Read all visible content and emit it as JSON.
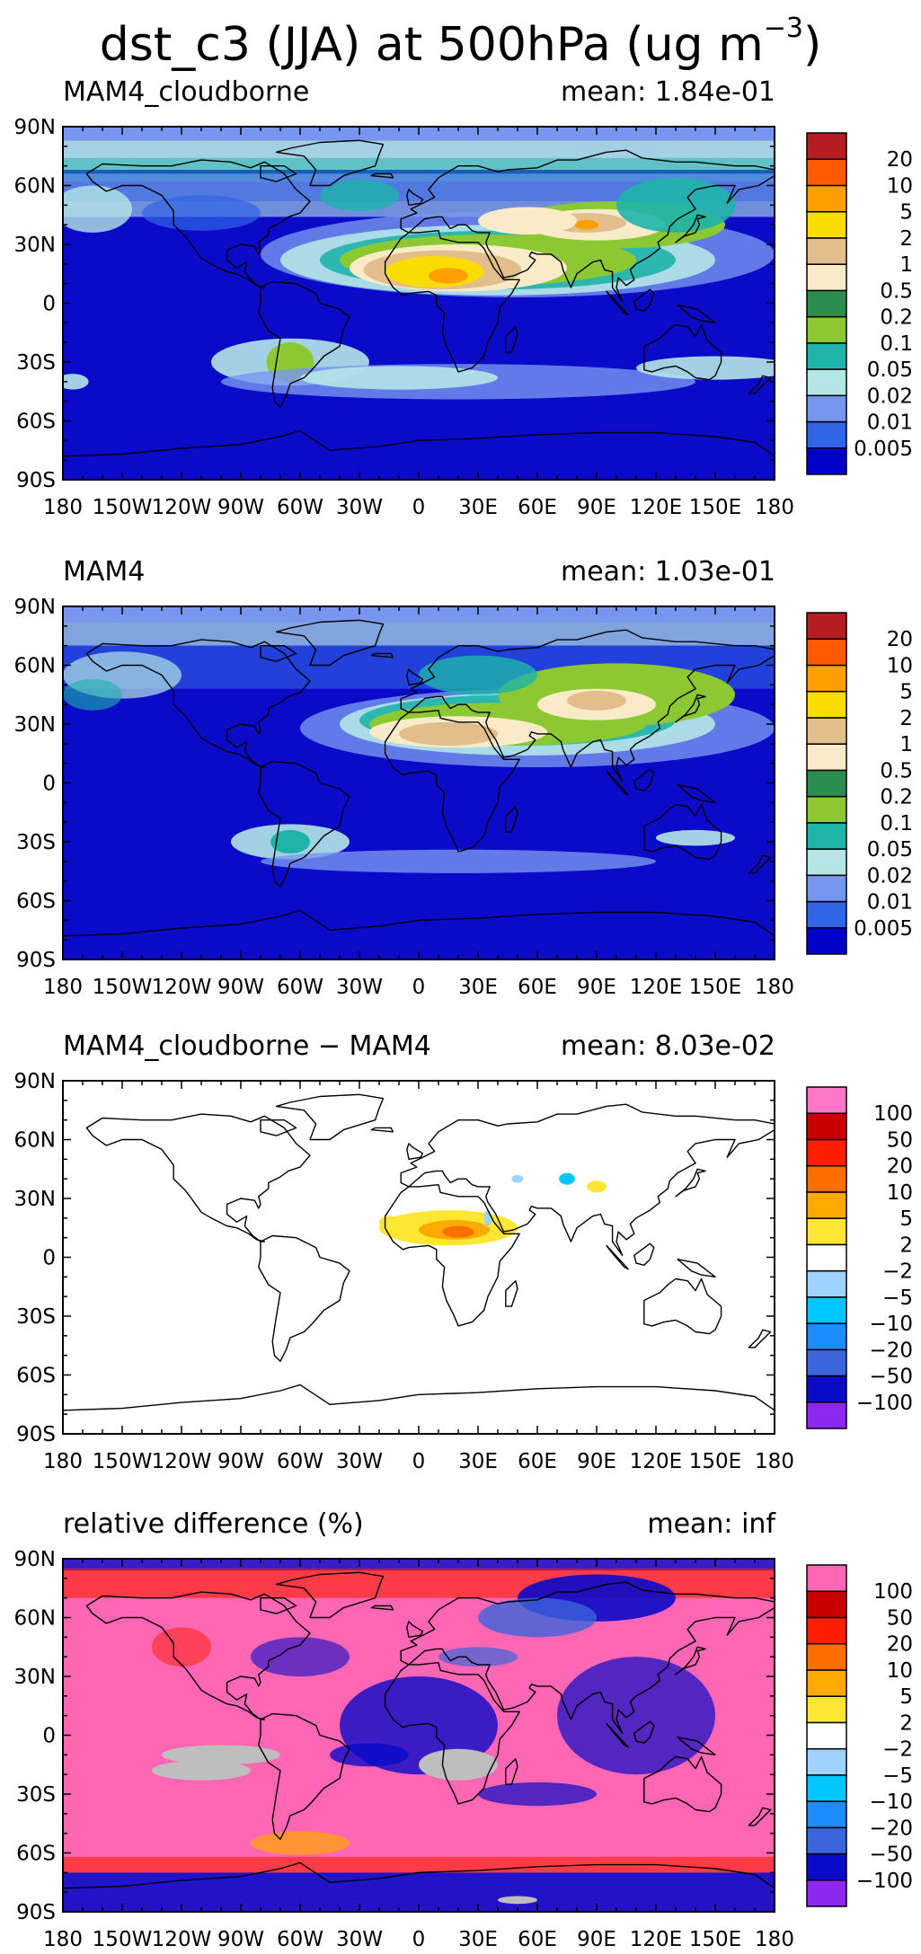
{
  "figure": {
    "title_main": "dst_c3 (JJA) at 500hPa (ug m",
    "title_sup": "−3",
    "title_close": ")"
  },
  "colors": {
    "land_outline": "#000000",
    "ocean_abs": "#0a0ac8",
    "diff_background": "#ffffff",
    "relative_background": "#ff66b3",
    "missing_gray": "#bebebe"
  },
  "chart_data": [
    {
      "type": "heatmap",
      "title": "MAM4_cloudborne",
      "mean_label": "mean:",
      "mean_value": "1.84e-01",
      "xlim": [
        -180,
        180
      ],
      "ylim": [
        -90,
        90
      ],
      "x_ticks": [
        "180",
        "150W",
        "120W",
        "90W",
        "60W",
        "30W",
        "0",
        "30E",
        "60E",
        "90E",
        "120E",
        "150E",
        "180"
      ],
      "y_ticks": [
        "90N",
        "60N",
        "30N",
        "0",
        "30S",
        "60S",
        "90S"
      ],
      "legend": {
        "colors": [
          "#0000c8",
          "#3264e6",
          "#7896f0",
          "#b4e6e6",
          "#1eb4aa",
          "#8cc832",
          "#2d8c50",
          "#faebc8",
          "#e1be8c",
          "#fadc00",
          "#ffa000",
          "#ff5a00",
          "#b41e1e"
        ],
        "labels": [
          "0.005",
          "0.01",
          "0.02",
          "0.05",
          "0.1",
          "0.2",
          "0.5",
          "1",
          "2",
          "5",
          "10",
          "20"
        ]
      }
    },
    {
      "type": "heatmap",
      "title": "MAM4",
      "mean_label": "mean:",
      "mean_value": "1.03e-01",
      "xlim": [
        -180,
        180
      ],
      "ylim": [
        -90,
        90
      ],
      "x_ticks": [
        "180",
        "150W",
        "120W",
        "90W",
        "60W",
        "30W",
        "0",
        "30E",
        "60E",
        "90E",
        "120E",
        "150E",
        "180"
      ],
      "y_ticks": [
        "90N",
        "60N",
        "30N",
        "0",
        "30S",
        "60S",
        "90S"
      ],
      "legend": {
        "colors": [
          "#0000c8",
          "#3264e6",
          "#7896f0",
          "#b4e6e6",
          "#1eb4aa",
          "#8cc832",
          "#2d8c50",
          "#faebc8",
          "#e1be8c",
          "#fadc00",
          "#ffa000",
          "#ff5a00",
          "#b41e1e"
        ],
        "labels": [
          "0.005",
          "0.01",
          "0.02",
          "0.05",
          "0.1",
          "0.2",
          "0.5",
          "1",
          "2",
          "5",
          "10",
          "20"
        ]
      }
    },
    {
      "type": "heatmap",
      "title": "MAM4_cloudborne − MAM4",
      "mean_label": "mean:",
      "mean_value": "8.03e-02",
      "xlim": [
        -180,
        180
      ],
      "ylim": [
        -90,
        90
      ],
      "x_ticks": [
        "180",
        "150W",
        "120W",
        "90W",
        "60W",
        "30W",
        "0",
        "30E",
        "60E",
        "90E",
        "120E",
        "150E",
        "180"
      ],
      "y_ticks": [
        "90N",
        "60N",
        "30N",
        "0",
        "30S",
        "60S",
        "90S"
      ],
      "legend": {
        "colors": [
          "#8c28f0",
          "#0a0ac8",
          "#3c64dc",
          "#1e8cff",
          "#00c8ff",
          "#a0d2ff",
          "#ffffff",
          "#ffe632",
          "#ffaa00",
          "#ff6e00",
          "#ff1e00",
          "#c80000",
          "#ff78c8"
        ],
        "labels": [
          "−100",
          "−50",
          "−20",
          "−10",
          "−5",
          "−2",
          "2",
          "5",
          "10",
          "20",
          "50",
          "100"
        ]
      }
    },
    {
      "type": "heatmap",
      "title": "relative difference (%)",
      "mean_label": "mean:",
      "mean_value": "inf",
      "xlim": [
        -180,
        180
      ],
      "ylim": [
        -90,
        90
      ],
      "x_ticks": [
        "180",
        "150W",
        "120W",
        "90W",
        "60W",
        "30W",
        "0",
        "30E",
        "60E",
        "90E",
        "120E",
        "150E",
        "180"
      ],
      "y_ticks": [
        "90N",
        "60N",
        "30N",
        "0",
        "30S",
        "60S",
        "90S"
      ],
      "legend": {
        "colors": [
          "#8c28f0",
          "#0a0ac8",
          "#3c64dc",
          "#1e8cff",
          "#00c8ff",
          "#a0d2ff",
          "#ffffff",
          "#ffe632",
          "#ffaa00",
          "#ff6e00",
          "#ff1e00",
          "#c80000",
          "#ff66b3"
        ],
        "labels": [
          "−100",
          "−50",
          "−20",
          "−10",
          "−5",
          "−2",
          "2",
          "5",
          "10",
          "20",
          "50",
          "100"
        ]
      }
    }
  ]
}
